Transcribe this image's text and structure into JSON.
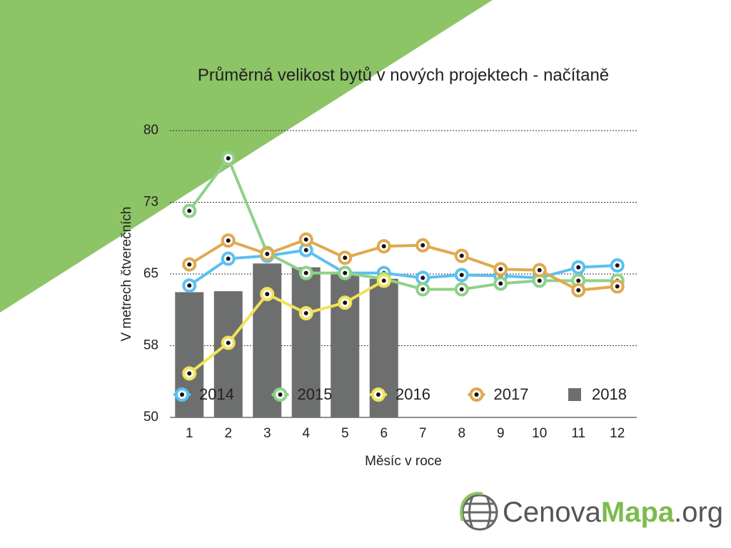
{
  "chart_data": {
    "type": "line",
    "title": "Průměrná velikost bytů v nových projektech - načítaně",
    "y_label": "V metrech čtverečních",
    "x_label": "Měsíc v roce",
    "categories": [
      "1",
      "2",
      "3",
      "4",
      "5",
      "6",
      "7",
      "8",
      "9",
      "10",
      "11",
      "12"
    ],
    "ylim": [
      50,
      80
    ],
    "yticks": [
      50,
      {
        "value": 57.5,
        "label": "58"
      },
      65,
      {
        "value": 72.5,
        "label": "73"
      },
      80
    ],
    "grid": true,
    "legend": "bottom",
    "series": [
      {
        "name": "2014",
        "type": "line",
        "color": "#5bc0f0",
        "values": [
          63.8,
          66.6,
          66.9,
          67.5,
          65.1,
          65.1,
          64.6,
          64.9,
          64.8,
          64.6,
          65.7,
          65.9
        ]
      },
      {
        "name": "2015",
        "type": "line",
        "color": "#8fd18a",
        "values": [
          71.6,
          77.1,
          67.2,
          65.1,
          65.1,
          64.5,
          63.4,
          63.4,
          64.0,
          64.3,
          64.3,
          64.3
        ]
      },
      {
        "name": "2016",
        "type": "line",
        "color": "#f2e25a",
        "values": [
          54.6,
          57.8,
          62.9,
          60.9,
          62.0,
          64.3,
          null,
          null,
          null,
          null,
          null,
          null
        ]
      },
      {
        "name": "2017",
        "type": "line",
        "color": "#e0a94e",
        "values": [
          66.0,
          68.5,
          67.1,
          68.6,
          66.7,
          67.9,
          68.0,
          66.9,
          65.5,
          65.4,
          63.3,
          63.7
        ]
      },
      {
        "name": "2018",
        "type": "bar",
        "color": "#6d6f6e",
        "values": [
          63.1,
          63.2,
          66.1,
          65.7,
          65.0,
          64.5,
          null,
          null,
          null,
          null,
          null,
          null
        ]
      }
    ]
  },
  "logo": [
    "Cenova",
    "Mapa",
    ".org"
  ]
}
